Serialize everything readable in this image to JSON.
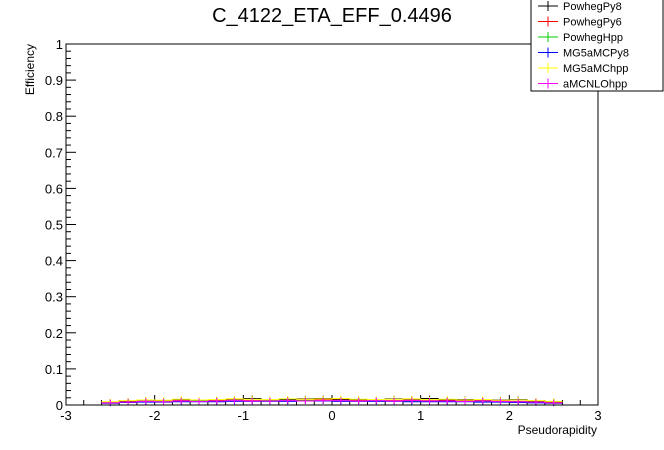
{
  "chart_data": {
    "type": "line",
    "title": "C_4122_ETA_EFF_0.4496",
    "xlabel": "Pseudorapidity",
    "ylabel": "Efficiency",
    "xlim": [
      -3,
      3
    ],
    "ylim": [
      0,
      1
    ],
    "x_ticks": [
      "-3",
      "-2",
      "-1",
      "0",
      "1",
      "2",
      "3"
    ],
    "y_ticks": [
      "0",
      "0.1",
      "0.2",
      "0.3",
      "0.4",
      "0.5",
      "0.6",
      "0.7",
      "0.8",
      "0.9",
      "1"
    ],
    "legend_position": "top-right",
    "grid": false,
    "x": [
      -2.5,
      -2.3,
      -2.1,
      -1.9,
      -1.7,
      -1.5,
      -1.3,
      -1.1,
      -0.9,
      -0.7,
      -0.5,
      -0.3,
      -0.1,
      0.1,
      0.3,
      0.5,
      0.7,
      0.9,
      1.1,
      1.3,
      1.5,
      1.7,
      1.9,
      2.1,
      2.3,
      2.5
    ],
    "series": [
      {
        "name": "PowhegPy8",
        "color": "#000000",
        "values": [
          0.008,
          0.011,
          0.013,
          0.012,
          0.015,
          0.012,
          0.014,
          0.016,
          0.018,
          0.014,
          0.015,
          0.017,
          0.018,
          0.016,
          0.015,
          0.013,
          0.017,
          0.016,
          0.018,
          0.014,
          0.015,
          0.013,
          0.014,
          0.015,
          0.011,
          0.009
        ]
      },
      {
        "name": "PowhegPy6",
        "color": "#ff0000",
        "values": [
          0.007,
          0.009,
          0.01,
          0.011,
          0.012,
          0.011,
          0.012,
          0.013,
          0.012,
          0.013,
          0.012,
          0.013,
          0.014,
          0.013,
          0.012,
          0.013,
          0.012,
          0.013,
          0.012,
          0.012,
          0.011,
          0.012,
          0.011,
          0.01,
          0.009,
          0.007
        ]
      },
      {
        "name": "PowhegHpp",
        "color": "#00cc00",
        "values": [
          0.006,
          0.008,
          0.009,
          0.01,
          0.01,
          0.011,
          0.011,
          0.012,
          0.011,
          0.012,
          0.012,
          0.012,
          0.012,
          0.012,
          0.011,
          0.012,
          0.011,
          0.011,
          0.011,
          0.01,
          0.01,
          0.01,
          0.009,
          0.009,
          0.008,
          0.006
        ]
      },
      {
        "name": "MG5aMCPy8",
        "color": "#0000ff",
        "values": [
          0.005,
          0.007,
          0.008,
          0.008,
          0.009,
          0.009,
          0.009,
          0.01,
          0.01,
          0.01,
          0.01,
          0.011,
          0.011,
          0.01,
          0.01,
          0.01,
          0.01,
          0.009,
          0.009,
          0.009,
          0.009,
          0.008,
          0.008,
          0.007,
          0.006,
          0.005
        ]
      },
      {
        "name": "MG5aMChpp",
        "color": "#ffff00",
        "values": [
          0.009,
          0.012,
          0.014,
          0.013,
          0.016,
          0.014,
          0.015,
          0.017,
          0.016,
          0.015,
          0.017,
          0.016,
          0.017,
          0.018,
          0.016,
          0.015,
          0.016,
          0.017,
          0.015,
          0.016,
          0.014,
          0.015,
          0.013,
          0.014,
          0.012,
          0.01
        ]
      },
      {
        "name": "aMCNLOhpp",
        "color": "#ff00ff",
        "values": [
          0.006,
          0.008,
          0.01,
          0.009,
          0.011,
          0.01,
          0.011,
          0.012,
          0.011,
          0.011,
          0.012,
          0.011,
          0.012,
          0.012,
          0.011,
          0.012,
          0.011,
          0.012,
          0.011,
          0.011,
          0.01,
          0.011,
          0.01,
          0.009,
          0.008,
          0.006
        ]
      }
    ]
  }
}
